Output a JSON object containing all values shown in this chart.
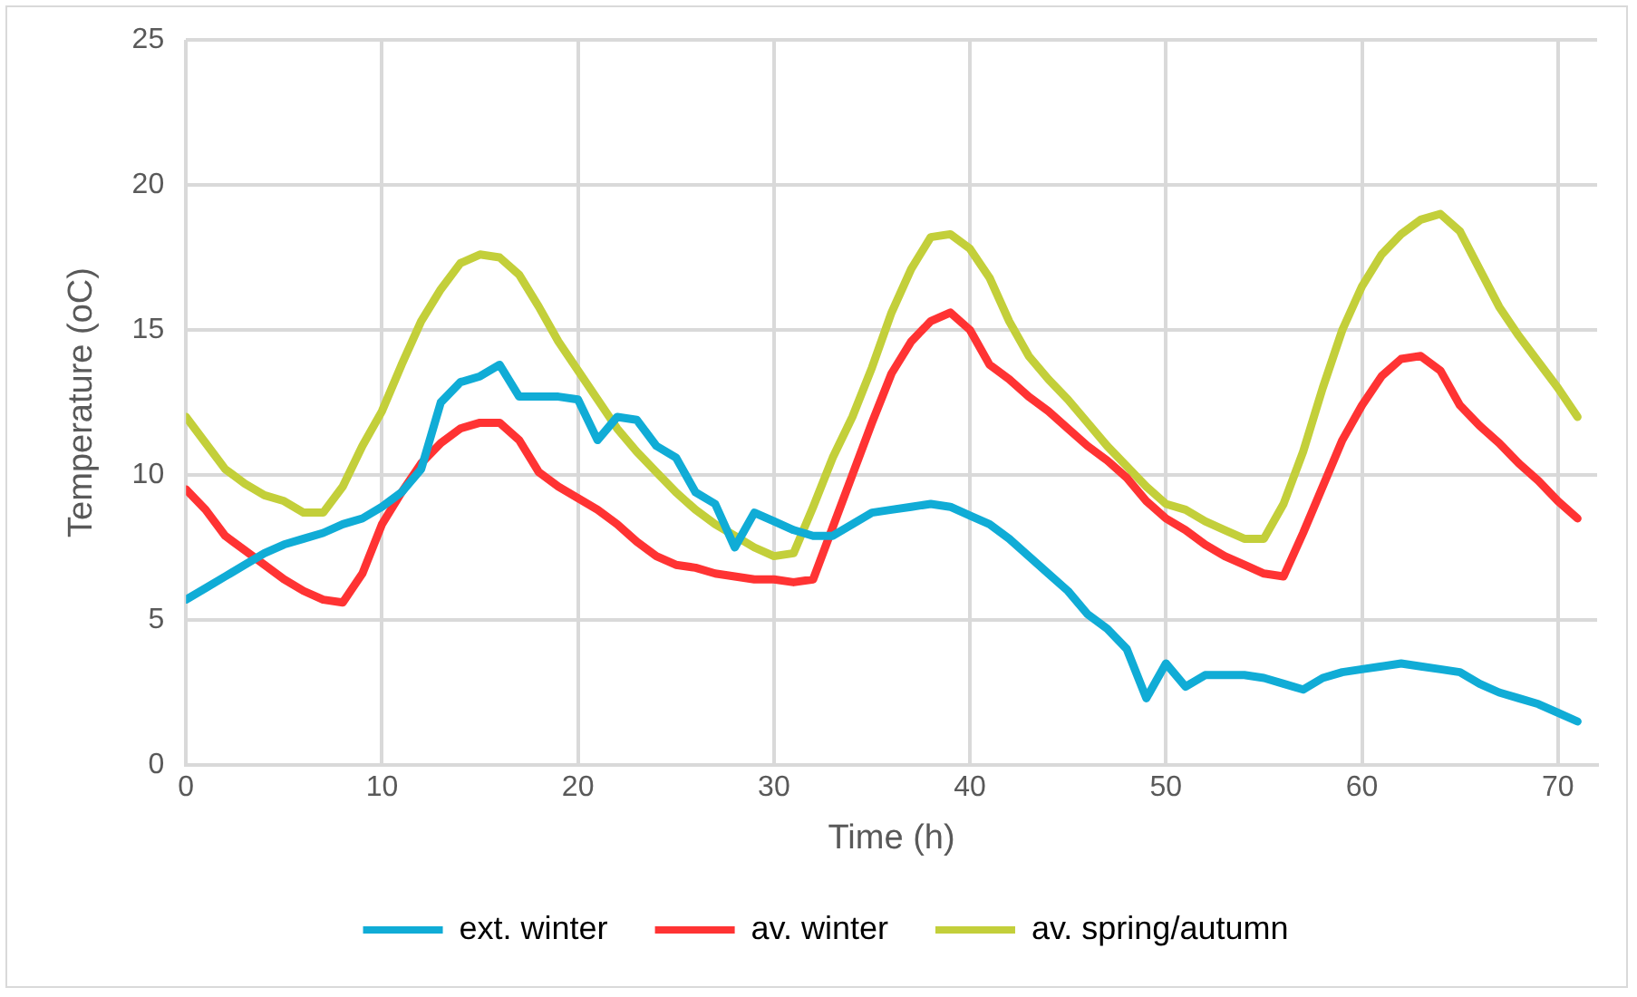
{
  "chart_data": {
    "type": "line",
    "xlabel": "Time (h)",
    "ylabel": "Temperature (oC)",
    "x": [
      0,
      1,
      2,
      3,
      4,
      5,
      6,
      7,
      8,
      9,
      10,
      11,
      12,
      13,
      14,
      15,
      16,
      17,
      18,
      19,
      20,
      21,
      22,
      23,
      24,
      25,
      26,
      27,
      28,
      29,
      30,
      31,
      32,
      33,
      34,
      35,
      36,
      37,
      38,
      39,
      40,
      41,
      42,
      43,
      44,
      45,
      46,
      47,
      48,
      49,
      50,
      51,
      52,
      53,
      54,
      55,
      56,
      57,
      58,
      59,
      60,
      61,
      62,
      63,
      64,
      65,
      66,
      67,
      68,
      69,
      70,
      71
    ],
    "series": [
      {
        "name": "ext. winter",
        "color": "#10acd6",
        "values": [
          5.7,
          6.1,
          6.5,
          6.9,
          7.3,
          7.6,
          7.8,
          8.0,
          8.3,
          8.5,
          8.9,
          9.4,
          10.2,
          12.5,
          13.2,
          13.4,
          13.8,
          12.7,
          12.7,
          12.7,
          12.6,
          11.2,
          12.0,
          11.9,
          11.0,
          10.6,
          9.4,
          9.0,
          7.5,
          8.7,
          8.4,
          8.1,
          7.9,
          7.9,
          8.3,
          8.7,
          8.8,
          8.9,
          9.0,
          8.9,
          8.6,
          8.3,
          7.8,
          7.2,
          6.6,
          6.0,
          5.2,
          4.7,
          4.0,
          2.3,
          3.5,
          2.7,
          3.1,
          3.1,
          3.1,
          3.0,
          2.8,
          2.6,
          3.0,
          3.2,
          3.3,
          3.4,
          3.5,
          3.4,
          3.3,
          3.2,
          2.8,
          2.5,
          2.3,
          2.1,
          1.8,
          1.5
        ]
      },
      {
        "name": "av. winter",
        "color": "#ff3333",
        "values": [
          9.5,
          8.8,
          7.9,
          7.4,
          6.9,
          6.4,
          6.0,
          5.7,
          5.6,
          6.6,
          8.3,
          9.4,
          10.4,
          11.1,
          11.6,
          11.8,
          11.8,
          11.2,
          10.1,
          9.6,
          9.2,
          8.8,
          8.3,
          7.7,
          7.2,
          6.9,
          6.8,
          6.6,
          6.5,
          6.4,
          6.4,
          6.3,
          6.4,
          8.2,
          10.0,
          11.8,
          13.5,
          14.6,
          15.3,
          15.6,
          15.0,
          13.8,
          13.3,
          12.7,
          12.2,
          11.6,
          11.0,
          10.5,
          9.9,
          9.1,
          8.5,
          8.1,
          7.6,
          7.2,
          6.9,
          6.6,
          6.5,
          8.0,
          9.6,
          11.2,
          12.4,
          13.4,
          14.0,
          14.1,
          13.6,
          12.4,
          11.7,
          11.1,
          10.4,
          9.8,
          9.1,
          8.5
        ]
      },
      {
        "name": "av. spring/autumn",
        "color": "#c3cf3a",
        "values": [
          12.0,
          11.1,
          10.2,
          9.7,
          9.3,
          9.1,
          8.7,
          8.7,
          9.6,
          11.0,
          12.2,
          13.8,
          15.3,
          16.4,
          17.3,
          17.6,
          17.5,
          16.9,
          15.8,
          14.6,
          13.6,
          12.6,
          11.6,
          10.8,
          10.1,
          9.4,
          8.8,
          8.3,
          7.9,
          7.5,
          7.2,
          7.3,
          8.9,
          10.6,
          12.0,
          13.7,
          15.6,
          17.1,
          18.2,
          18.3,
          17.8,
          16.8,
          15.3,
          14.1,
          13.3,
          12.6,
          11.8,
          11.0,
          10.3,
          9.6,
          9.0,
          8.8,
          8.4,
          8.1,
          7.8,
          7.8,
          9.0,
          10.8,
          13.0,
          15.0,
          16.5,
          17.6,
          18.3,
          18.8,
          19.0,
          18.4,
          17.1,
          15.8,
          14.8,
          13.9,
          13.0,
          12.0
        ]
      }
    ],
    "xlim": [
      0,
      72
    ],
    "xticks": [
      0,
      10,
      20,
      30,
      40,
      50,
      60,
      70
    ],
    "ylim": [
      0,
      25
    ],
    "yticks": [
      0,
      5,
      10,
      15,
      20,
      25
    ],
    "grid": true,
    "legend": "bottom",
    "marker": "none",
    "line_style": "solid"
  }
}
